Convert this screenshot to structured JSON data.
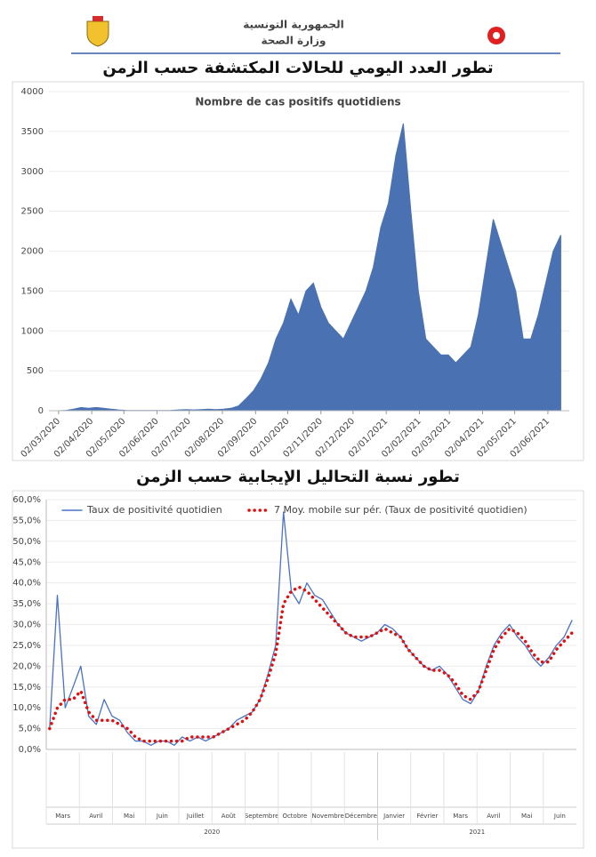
{
  "header": {
    "line1": "الجمهورية التونسية",
    "line2": "وزارة الصحة"
  },
  "chart_data": [
    {
      "type": "area",
      "title": "تطور العدد اليومي للحالات المكتشفة حسب الزمن",
      "subtitle": "Nombre de cas positifs quotidiens",
      "color": "#4a72b3",
      "x": [
        "02/03/2020",
        "09/03/2020",
        "16/03/2020",
        "23/03/2020",
        "30/03/2020",
        "06/04/2020",
        "13/04/2020",
        "20/04/2020",
        "27/04/2020",
        "04/05/2020",
        "11/05/2020",
        "18/05/2020",
        "25/05/2020",
        "01/06/2020",
        "08/06/2020",
        "15/06/2020",
        "22/06/2020",
        "29/06/2020",
        "06/07/2020",
        "13/07/2020",
        "20/07/2020",
        "27/07/2020",
        "03/08/2020",
        "10/08/2020",
        "17/08/2020",
        "24/08/2020",
        "31/08/2020",
        "07/09/2020",
        "14/09/2020",
        "21/09/2020",
        "28/09/2020",
        "05/10/2020",
        "12/10/2020",
        "19/10/2020",
        "26/10/2020",
        "02/11/2020",
        "09/11/2020",
        "16/11/2020",
        "23/11/2020",
        "30/11/2020",
        "07/12/2020",
        "14/12/2020",
        "21/12/2020",
        "28/12/2020",
        "04/01/2021",
        "11/01/2021",
        "18/01/2021",
        "25/01/2021",
        "01/02/2021",
        "08/02/2021",
        "15/02/2021",
        "22/02/2021",
        "01/03/2021",
        "08/03/2021",
        "15/03/2021",
        "22/03/2021",
        "29/03/2021",
        "05/04/2021",
        "12/04/2021",
        "19/04/2021",
        "26/04/2021",
        "03/05/2021",
        "10/05/2021",
        "17/05/2021",
        "24/05/2021",
        "31/05/2021",
        "07/06/2021",
        "14/06/2021"
      ],
      "values": [
        0,
        5,
        20,
        40,
        30,
        40,
        30,
        20,
        10,
        5,
        3,
        2,
        2,
        2,
        2,
        5,
        10,
        15,
        10,
        15,
        20,
        15,
        20,
        30,
        60,
        150,
        250,
        400,
        600,
        900,
        1100,
        1400,
        1200,
        1500,
        1600,
        1300,
        1100,
        1000,
        900,
        1100,
        1300,
        1500,
        1800,
        2300,
        2600,
        3200,
        3600,
        2500,
        1500,
        900,
        800,
        700,
        700,
        600,
        700,
        800,
        1200,
        1800,
        2400,
        2100,
        1800,
        1500,
        900,
        900,
        1200,
        1600,
        2000,
        2200
      ],
      "xlim": [
        "22/02/2020",
        "22/06/2021"
      ],
      "xticks": [
        "02/03/2020",
        "02/04/2020",
        "02/05/2020",
        "02/06/2020",
        "02/07/2020",
        "02/08/2020",
        "02/09/2020",
        "02/10/2020",
        "02/11/2020",
        "02/12/2020",
        "02/01/2021",
        "02/02/2021",
        "02/03/2021",
        "02/04/2021",
        "02/05/2021",
        "02/06/2021"
      ],
      "ylim": [
        0,
        4000
      ],
      "yticks": [
        0,
        500,
        1000,
        1500,
        2000,
        2500,
        3000,
        3500,
        4000
      ]
    },
    {
      "type": "line",
      "title": "تطور نسبة التحاليل الإيجابية حسب الزمن",
      "x": [
        "02/03/2020",
        "09/03/2020",
        "16/03/2020",
        "23/03/2020",
        "30/03/2020",
        "06/04/2020",
        "13/04/2020",
        "20/04/2020",
        "27/04/2020",
        "04/05/2020",
        "11/05/2020",
        "18/05/2020",
        "25/05/2020",
        "01/06/2020",
        "08/06/2020",
        "15/06/2020",
        "22/06/2020",
        "29/06/2020",
        "06/07/2020",
        "13/07/2020",
        "20/07/2020",
        "27/07/2020",
        "03/08/2020",
        "10/08/2020",
        "17/08/2020",
        "24/08/2020",
        "31/08/2020",
        "07/09/2020",
        "14/09/2020",
        "21/09/2020",
        "28/09/2020",
        "05/10/2020",
        "12/10/2020",
        "19/10/2020",
        "26/10/2020",
        "02/11/2020",
        "09/11/2020",
        "16/11/2020",
        "23/11/2020",
        "30/11/2020",
        "07/12/2020",
        "14/12/2020",
        "21/12/2020",
        "28/12/2020",
        "04/01/2021",
        "11/01/2021",
        "18/01/2021",
        "25/01/2021",
        "01/02/2021",
        "08/02/2021",
        "15/02/2021",
        "22/02/2021",
        "01/03/2021",
        "08/03/2021",
        "15/03/2021",
        "22/03/2021",
        "29/03/2021",
        "05/04/2021",
        "12/04/2021",
        "19/04/2021",
        "26/04/2021",
        "03/05/2021",
        "10/05/2021",
        "17/05/2021",
        "24/05/2021",
        "31/05/2021",
        "07/06/2021",
        "14/06/2021"
      ],
      "series": [
        {
          "name": "Taux de positivité quotidien",
          "color": "#4a72c4",
          "style": "solid",
          "values": [
            5,
            37,
            10,
            15,
            20,
            8,
            6,
            12,
            8,
            7,
            4,
            2,
            2,
            1,
            2,
            2,
            1,
            3,
            2,
            3,
            2,
            3,
            4,
            5,
            7,
            8,
            9,
            12,
            18,
            25,
            57,
            38,
            35,
            40,
            37,
            36,
            33,
            30,
            28,
            27,
            26,
            27,
            28,
            30,
            29,
            27,
            24,
            22,
            20,
            19,
            20,
            18,
            15,
            12,
            11,
            14,
            20,
            25,
            28,
            30,
            27,
            25,
            22,
            20,
            22,
            25,
            27,
            31
          ]
        },
        {
          "name": "7 Moy. mobile sur pér. (Taux de positivité quotidien)",
          "color": "#e01010",
          "style": "dotted",
          "values": [
            5,
            10,
            12,
            12,
            14,
            9,
            7,
            7,
            7,
            6,
            5,
            3,
            2,
            2,
            2,
            2,
            2,
            2,
            3,
            3,
            3,
            3,
            4,
            5,
            6,
            7,
            9,
            12,
            17,
            23,
            35,
            38,
            39,
            38,
            36,
            34,
            32,
            30,
            28,
            27,
            27,
            27,
            28,
            29,
            28,
            27,
            24,
            22,
            20,
            19,
            19,
            18,
            16,
            13,
            12,
            14,
            19,
            24,
            27,
            29,
            28,
            26,
            23,
            21,
            21,
            24,
            26,
            28
          ]
        }
      ],
      "xlim": [
        "28/02/2020",
        "18/06/2021"
      ],
      "ylim": [
        0,
        60
      ],
      "yticks": [
        {
          "value": 0,
          "label": "0,0%"
        },
        {
          "value": 5,
          "label": "5,0%"
        },
        {
          "value": 10,
          "label": "10,0%"
        },
        {
          "value": 15,
          "label": "15,0%"
        },
        {
          "value": 20,
          "label": "20,0%"
        },
        {
          "value": 25,
          "label": "25,0%"
        },
        {
          "value": 30,
          "label": "30,0%"
        },
        {
          "value": 35,
          "label": "35,0%"
        },
        {
          "value": 40,
          "label": "40,0%"
        },
        {
          "value": 45,
          "label": "45,0%"
        },
        {
          "value": 50,
          "label": "50,0%"
        },
        {
          "value": 55,
          "label": "55,0%"
        },
        {
          "value": 60,
          "label": "60,0%"
        }
      ],
      "months": [
        "Mars",
        "Avril",
        "Mai",
        "Juin",
        "Juillet",
        "Août",
        "Septembre",
        "Octobre",
        "Novembre",
        "Décembre",
        "Janvier",
        "Février",
        "Mars",
        "Avril",
        "Mai",
        "Juin"
      ],
      "years": [
        "2020",
        "2021"
      ]
    }
  ]
}
